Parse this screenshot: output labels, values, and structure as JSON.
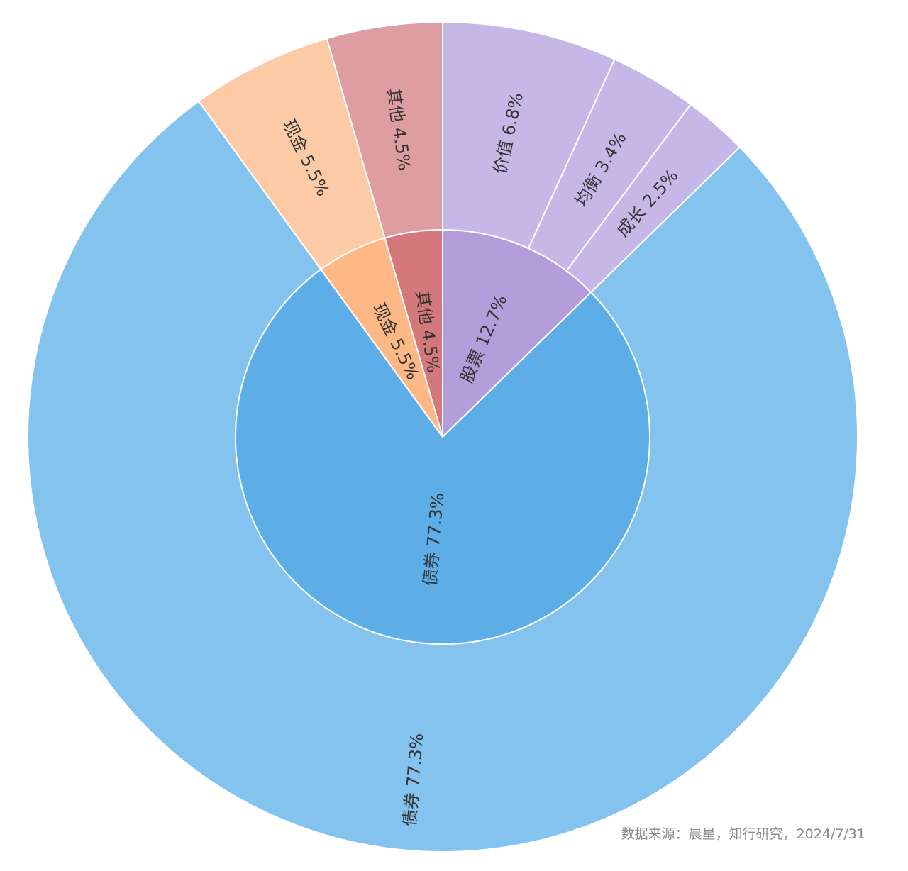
{
  "chart_data": {
    "type": "sunburst",
    "title": "",
    "inner_ring": [
      {
        "name": "股票",
        "value": 12.7,
        "label": "股票 12.7%",
        "color": "#b39ddb"
      },
      {
        "name": "债券",
        "value": 77.3,
        "label": "债券 77.3%",
        "color": "#5dade6"
      },
      {
        "name": "现金",
        "value": 5.5,
        "label": "现金 5.5%",
        "color": "#fdb886"
      },
      {
        "name": "其他",
        "value": 4.5,
        "label": "其他 4.5%",
        "color": "#d4787c"
      }
    ],
    "outer_ring": [
      {
        "name": "价值",
        "parent": "股票",
        "value": 6.8,
        "label": "价值 6.8%",
        "color": "#c5b8e6"
      },
      {
        "name": "均衡",
        "parent": "股票",
        "value": 3.4,
        "label": "均衡 3.4%",
        "color": "#c5b8e6"
      },
      {
        "name": "成长",
        "parent": "股票",
        "value": 2.5,
        "label": "成长 2.5%",
        "color": "#c5b8e6"
      },
      {
        "name": "债券",
        "parent": "债券",
        "value": 77.3,
        "label": "债券 77.3%",
        "color": "#85c3ef"
      },
      {
        "name": "现金",
        "parent": "现金",
        "value": 5.5,
        "label": "现金 5.5%",
        "color": "#fccba5"
      },
      {
        "name": "其他",
        "parent": "其他",
        "value": 4.5,
        "label": "其他 4.5%",
        "color": "#de9da1"
      }
    ]
  },
  "source_note": "数据来源：晨星，知行研究，2024/7/31"
}
